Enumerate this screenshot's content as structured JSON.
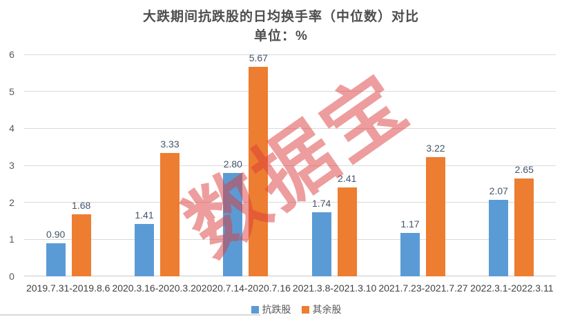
{
  "title": "大跌期间抗跌股的日均换手率（中位数）对比",
  "subtitle": "单位：%",
  "watermark": "数据宝",
  "chart_data": {
    "type": "bar",
    "title": "大跌期间抗跌股的日均换手率（中位数）对比",
    "subtitle": "单位：%",
    "unit": "%",
    "categories": [
      "2019.7.31-2019.8.6",
      "2020.3.16-2020.3.20",
      "2020.7.14-2020.7.16",
      "2021.3.8-2021.3.10",
      "2021.7.23-2021.7.27",
      "2022.3.1-2022.3.11"
    ],
    "series": [
      {
        "name": "抗跌股",
        "color": "#5B9BD5",
        "values": [
          0.9,
          1.41,
          2.8,
          1.74,
          1.17,
          2.07
        ],
        "labels": [
          "0.90",
          "1.41",
          "2.80",
          "1.74",
          "1.17",
          "2.07"
        ]
      },
      {
        "name": "其余股",
        "color": "#ED7D31",
        "values": [
          1.68,
          3.33,
          5.67,
          2.41,
          3.22,
          2.65
        ],
        "labels": [
          "1.68",
          "3.33",
          "5.67",
          "2.41",
          "3.22",
          "2.65"
        ]
      }
    ],
    "xlabel": "",
    "ylabel": "",
    "ylim": [
      0,
      6
    ],
    "yticks": [
      0,
      1,
      2,
      3,
      4,
      5,
      6
    ],
    "grid": true,
    "value_labels": true,
    "legend_position": "bottom",
    "watermark": "数据宝"
  },
  "colors": {
    "series_resistant": "#5B9BD5",
    "series_other": "#ED7D31",
    "watermark_red": "#DB3C3C",
    "gridline": "#d9d9d9",
    "title_text": "#4d4d4d",
    "tick_text": "#595959",
    "value_label_text": "#44546a"
  }
}
